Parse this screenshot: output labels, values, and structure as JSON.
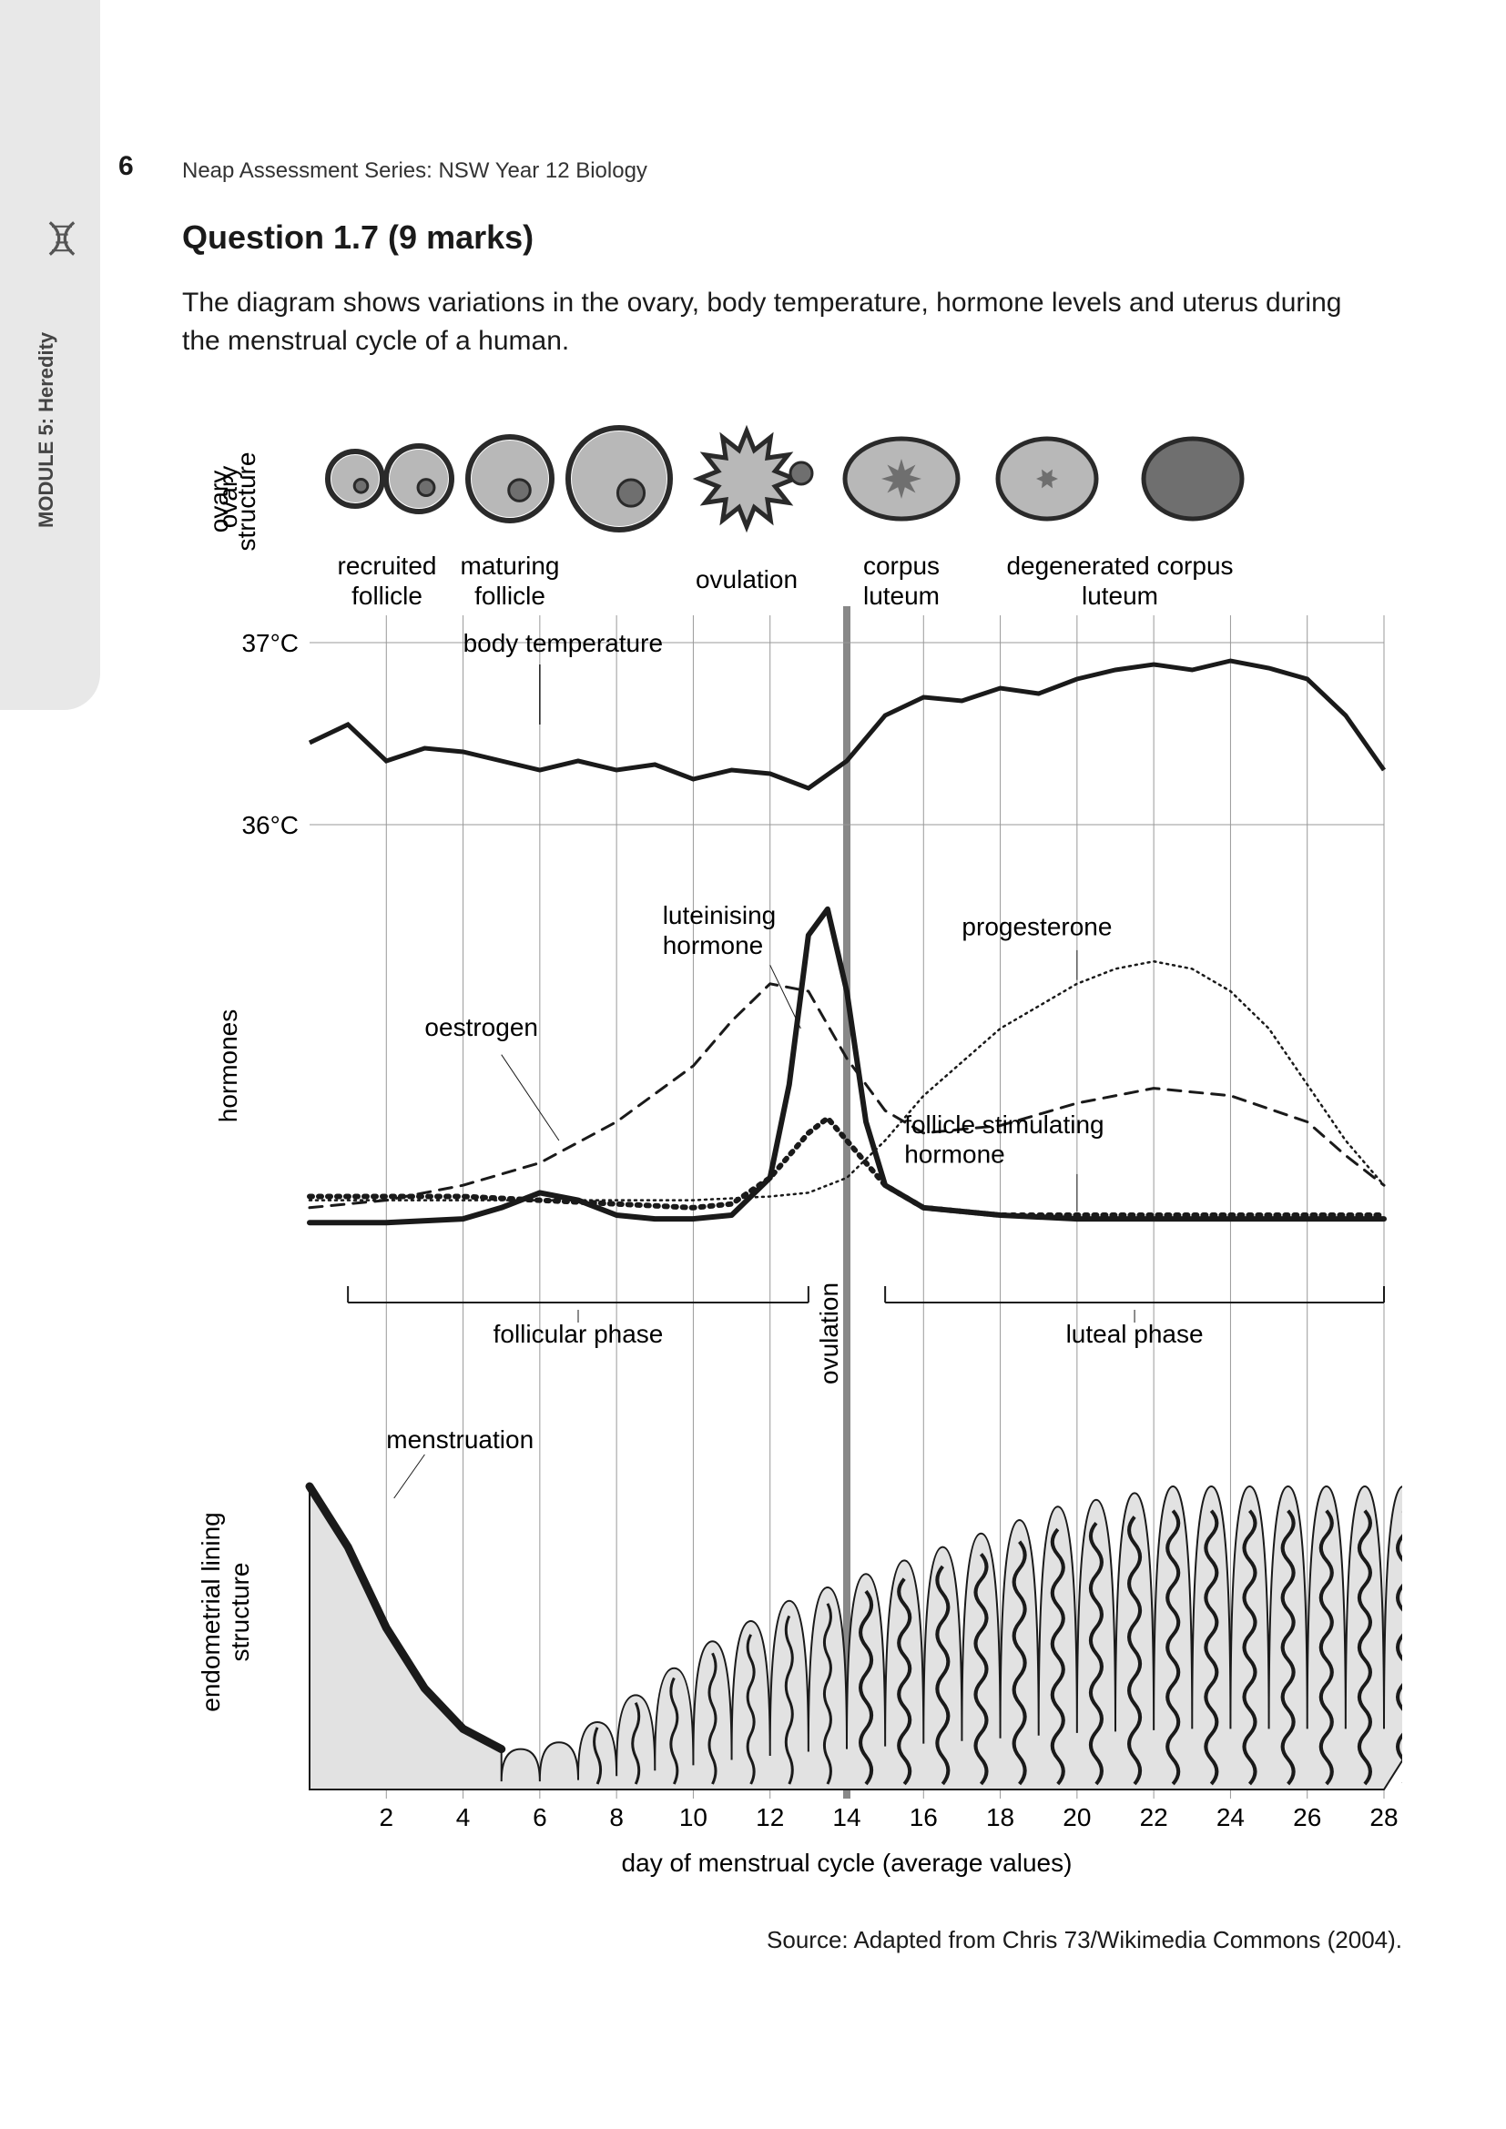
{
  "page": {
    "number": "6",
    "series_title": "Neap Assessment Series: NSW Year 12 Biology",
    "module_label": "MODULE 5: Heredity"
  },
  "question": {
    "title": "Question 1.7   (9 marks)",
    "intro": "The diagram shows variations in the ovary, body temperature, hormone levels and uterus during the menstrual cycle of a human."
  },
  "diagram": {
    "source": "Source: Adapted from Chris 73/Wikimedia Commons (2004).",
    "x_axis": {
      "label": "day of menstrual cycle (average values)",
      "ticks": [
        2,
        4,
        6,
        8,
        10,
        12,
        14,
        16,
        18,
        20,
        22,
        24,
        26,
        28
      ],
      "range": [
        0,
        28
      ]
    },
    "grid_color": "#999999",
    "ovulation_line_color": "#888888",
    "ovulation_day": 14,
    "panels": {
      "ovary": {
        "ylabel": "ovary\nstructure",
        "stage_labels": [
          "recruited follicle",
          "maturing follicle",
          "ovulation",
          "corpus luteum",
          "degenerated corpus luteum"
        ],
        "fill_dark": "#6f6f6f",
        "fill_light": "#b8b8b8",
        "stroke": "#2a2a2a"
      },
      "temperature": {
        "label": "body temperature",
        "yticks": [
          "37°C",
          "36°C"
        ],
        "line_color": "#1a1a1a",
        "line_width": 5,
        "data": [
          [
            0,
            36.45
          ],
          [
            1,
            36.55
          ],
          [
            2,
            36.35
          ],
          [
            3,
            36.42
          ],
          [
            4,
            36.4
          ],
          [
            5,
            36.35
          ],
          [
            6,
            36.3
          ],
          [
            7,
            36.35
          ],
          [
            8,
            36.3
          ],
          [
            9,
            36.33
          ],
          [
            10,
            36.25
          ],
          [
            11,
            36.3
          ],
          [
            12,
            36.28
          ],
          [
            13,
            36.2
          ],
          [
            14,
            36.35
          ],
          [
            15,
            36.6
          ],
          [
            16,
            36.7
          ],
          [
            17,
            36.68
          ],
          [
            18,
            36.75
          ],
          [
            19,
            36.72
          ],
          [
            20,
            36.8
          ],
          [
            21,
            36.85
          ],
          [
            22,
            36.88
          ],
          [
            23,
            36.85
          ],
          [
            24,
            36.9
          ],
          [
            25,
            36.86
          ],
          [
            26,
            36.8
          ],
          [
            27,
            36.6
          ],
          [
            28,
            36.3
          ]
        ]
      },
      "hormones": {
        "ylabel": "hormones",
        "phase_labels": {
          "follicular": "follicular phase",
          "ovulation": "ovulation",
          "luteal": "luteal phase"
        },
        "series": {
          "lh": {
            "label": "luteinising hormone",
            "style": "solid-thick",
            "color": "#1a1a1a",
            "width": 6,
            "data": [
              [
                0,
                8
              ],
              [
                2,
                8
              ],
              [
                4,
                9
              ],
              [
                5,
                12
              ],
              [
                6,
                16
              ],
              [
                7,
                14
              ],
              [
                8,
                10
              ],
              [
                9,
                9
              ],
              [
                10,
                9
              ],
              [
                11,
                10
              ],
              [
                12,
                20
              ],
              [
                12.5,
                45
              ],
              [
                13,
                85
              ],
              [
                13.5,
                92
              ],
              [
                14,
                70
              ],
              [
                14.5,
                35
              ],
              [
                15,
                18
              ],
              [
                16,
                12
              ],
              [
                18,
                10
              ],
              [
                20,
                9
              ],
              [
                22,
                9
              ],
              [
                24,
                9
              ],
              [
                26,
                9
              ],
              [
                28,
                9
              ]
            ]
          },
          "fsh": {
            "label": "follicle stimulating hormone",
            "style": "dotted-thick",
            "color": "#1a1a1a",
            "width": 5,
            "data": [
              [
                0,
                15
              ],
              [
                2,
                15
              ],
              [
                4,
                15
              ],
              [
                6,
                14
              ],
              [
                8,
                13
              ],
              [
                10,
                12
              ],
              [
                11,
                13
              ],
              [
                12,
                20
              ],
              [
                13,
                32
              ],
              [
                13.5,
                36
              ],
              [
                14,
                30
              ],
              [
                15,
                18
              ],
              [
                16,
                12
              ],
              [
                18,
                10
              ],
              [
                20,
                10
              ],
              [
                22,
                10
              ],
              [
                24,
                10
              ],
              [
                26,
                10
              ],
              [
                28,
                10
              ]
            ]
          },
          "oestrogen": {
            "label": "oestrogen",
            "style": "dashed",
            "color": "#1a1a1a",
            "width": 3,
            "data": [
              [
                0,
                12
              ],
              [
                2,
                14
              ],
              [
                4,
                18
              ],
              [
                6,
                24
              ],
              [
                8,
                35
              ],
              [
                10,
                50
              ],
              [
                11,
                62
              ],
              [
                12,
                72
              ],
              [
                13,
                70
              ],
              [
                14,
                52
              ],
              [
                15,
                38
              ],
              [
                16,
                32
              ],
              [
                18,
                34
              ],
              [
                20,
                40
              ],
              [
                22,
                44
              ],
              [
                24,
                42
              ],
              [
                26,
                35
              ],
              [
                27,
                26
              ],
              [
                28,
                18
              ]
            ]
          },
          "progesterone": {
            "label": "progesterone",
            "style": "dotted-fine",
            "color": "#1a1a1a",
            "width": 2,
            "data": [
              [
                0,
                14
              ],
              [
                2,
                14
              ],
              [
                4,
                14
              ],
              [
                6,
                14
              ],
              [
                8,
                14
              ],
              [
                10,
                14
              ],
              [
                12,
                15
              ],
              [
                13,
                16
              ],
              [
                14,
                20
              ],
              [
                15,
                30
              ],
              [
                16,
                42
              ],
              [
                18,
                60
              ],
              [
                20,
                72
              ],
              [
                21,
                76
              ],
              [
                22,
                78
              ],
              [
                23,
                76
              ],
              [
                24,
                70
              ],
              [
                25,
                60
              ],
              [
                26,
                45
              ],
              [
                27,
                30
              ],
              [
                28,
                18
              ]
            ]
          }
        }
      },
      "endometrium": {
        "ylabel": "endometrial lining\nstructure",
        "label_menstruation": "menstruation",
        "fill": "#e2e2e2",
        "stroke": "#1a1a1a",
        "heights": [
          90,
          72,
          48,
          30,
          18,
          12,
          14,
          20,
          28,
          36,
          44,
          50,
          56,
          60,
          64,
          68,
          72,
          76,
          80,
          84,
          86,
          88,
          90,
          90,
          90,
          90,
          90,
          90,
          90
        ]
      }
    }
  }
}
